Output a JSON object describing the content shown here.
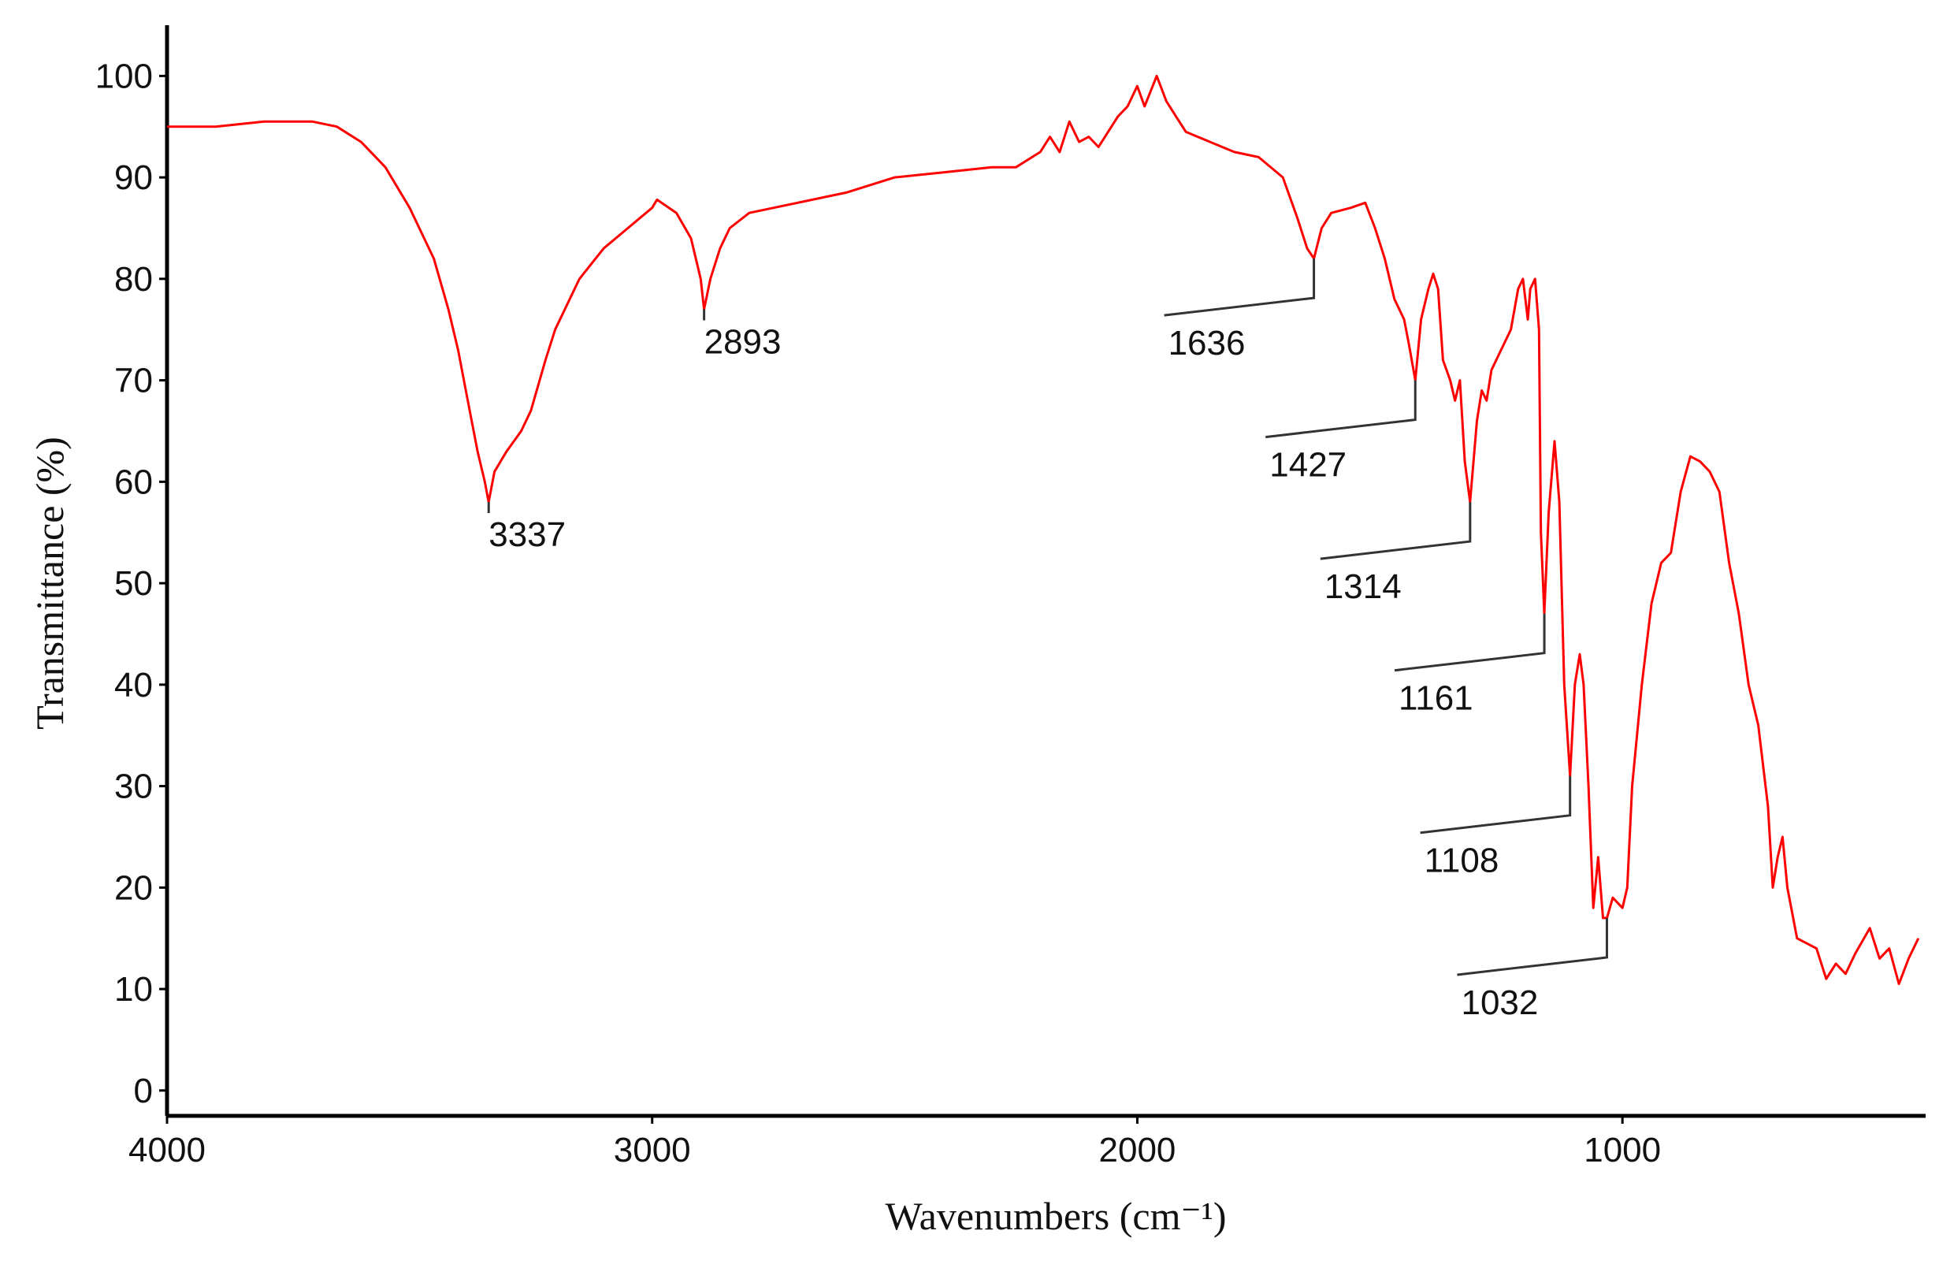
{
  "chart_data": {
    "type": "line",
    "xlabel": "Wavenumbers (cm⁻¹)",
    "ylabel": "Transmittance (%)",
    "color": "#ff0000",
    "xlim": [
      4000,
      375
    ],
    "xticks": [
      4000,
      3000,
      2000,
      1000
    ],
    "ylim": [
      -2.5,
      105
    ],
    "yticks": [
      0,
      10,
      20,
      30,
      40,
      50,
      60,
      70,
      80,
      90,
      100
    ],
    "x": [
      4000,
      3900,
      3800,
      3700,
      3650,
      3600,
      3550,
      3500,
      3450,
      3420,
      3400,
      3380,
      3360,
      3345,
      3337,
      3325,
      3300,
      3270,
      3250,
      3220,
      3200,
      3150,
      3100,
      3050,
      3000,
      2990,
      2950,
      2920,
      2900,
      2893,
      2880,
      2860,
      2840,
      2800,
      2700,
      2600,
      2500,
      2400,
      2300,
      2250,
      2200,
      2180,
      2160,
      2140,
      2120,
      2100,
      2080,
      2060,
      2040,
      2020,
      2000,
      1985,
      1960,
      1940,
      1920,
      1900,
      1850,
      1800,
      1750,
      1700,
      1670,
      1650,
      1636,
      1620,
      1600,
      1560,
      1530,
      1510,
      1490,
      1470,
      1450,
      1440,
      1427,
      1415,
      1400,
      1390,
      1380,
      1370,
      1355,
      1345,
      1335,
      1325,
      1314,
      1300,
      1290,
      1280,
      1270,
      1250,
      1230,
      1215,
      1205,
      1195,
      1190,
      1180,
      1172,
      1168,
      1161,
      1152,
      1140,
      1130,
      1120,
      1108,
      1098,
      1088,
      1080,
      1070,
      1060,
      1050,
      1040,
      1032,
      1020,
      1000,
      990,
      980,
      960,
      940,
      920,
      900,
      880,
      860,
      840,
      820,
      800,
      780,
      760,
      740,
      720,
      700,
      690,
      680,
      670,
      660,
      640,
      620,
      600,
      580,
      560,
      540,
      520,
      490,
      470,
      450,
      430,
      410,
      390
    ],
    "values": [
      95,
      95,
      95.5,
      95.5,
      95,
      93.5,
      91,
      87,
      82,
      77,
      73,
      68,
      63,
      60,
      58,
      61,
      63,
      65,
      67,
      72,
      75,
      80,
      83,
      85,
      87,
      87.8,
      86.5,
      84,
      80,
      77,
      80,
      83,
      85,
      86.5,
      87.5,
      88.5,
      90,
      90.5,
      91,
      91,
      92.5,
      94,
      92.5,
      95.5,
      93.5,
      94,
      93,
      94.5,
      96,
      97,
      99,
      97,
      100,
      97.5,
      96,
      94.5,
      93.5,
      92.5,
      92,
      90,
      86,
      83,
      82,
      85,
      86.5,
      87,
      87.5,
      85,
      82,
      78,
      76,
      73.5,
      70,
      76,
      79,
      80.5,
      79,
      72,
      70,
      68,
      70,
      62,
      58,
      66,
      69,
      68,
      71,
      73,
      75,
      79,
      80,
      76,
      79,
      80,
      75,
      55,
      47,
      57,
      64,
      58,
      40,
      31,
      40,
      43,
      40,
      30,
      18,
      23,
      17,
      17,
      19,
      18,
      20,
      30,
      40,
      48,
      52,
      53,
      59,
      62.5,
      62,
      61,
      59,
      52,
      47,
      40,
      36,
      28,
      20,
      23,
      25,
      20,
      15,
      14.5,
      14,
      11,
      12.5,
      11.5,
      13.5,
      16,
      13,
      14,
      10.5,
      13,
      15
    ],
    "annotations": [
      {
        "x": 3337,
        "y": 58
      },
      {
        "x": 2893,
        "y": 77
      },
      {
        "x": 1636,
        "y": 82
      },
      {
        "x": 1427,
        "y": 70
      },
      {
        "x": 1314,
        "y": 58
      },
      {
        "x": 1161,
        "y": 47
      },
      {
        "x": 1108,
        "y": 31
      },
      {
        "x": 1032,
        "y": 17
      }
    ]
  }
}
